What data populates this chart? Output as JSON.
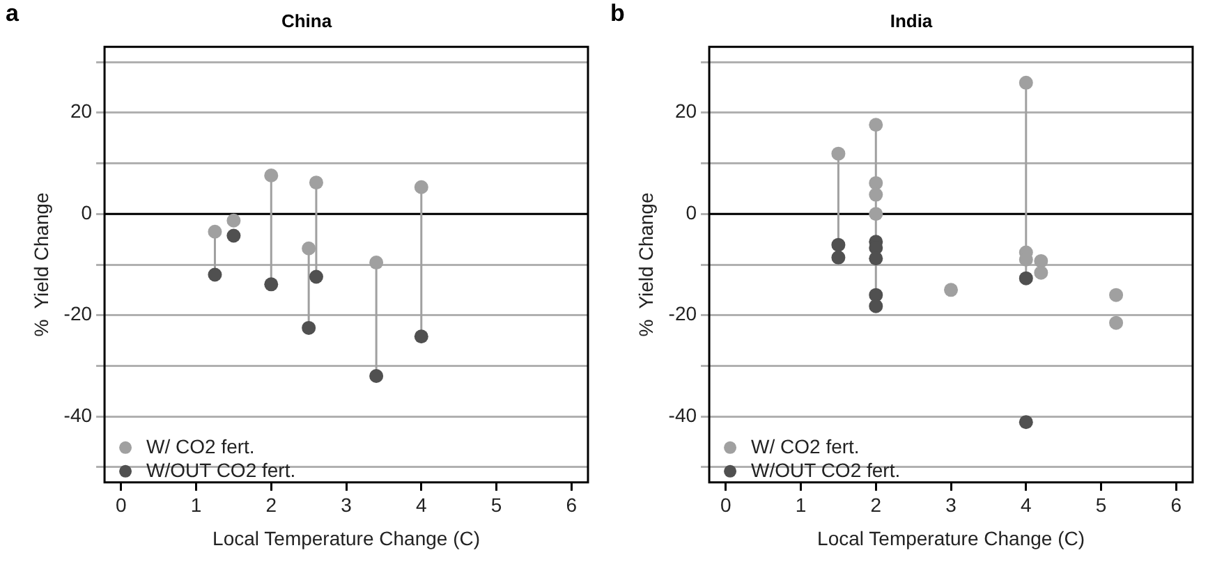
{
  "chart_data": [
    {
      "type": "scatter",
      "title": "China",
      "annotations": [
        "a"
      ],
      "xlabel": "Local Temperature Change (C)",
      "ylabel": "%  Yield Change",
      "xlim": [
        -0.22,
        6.22
      ],
      "xticks": [
        0,
        1,
        2,
        3,
        4,
        5,
        6
      ],
      "ylim": [
        -53,
        33
      ],
      "yticks": [
        {
          "value": -50,
          "label": null
        },
        -40,
        {
          "value": -30,
          "label": null
        },
        -20,
        {
          "value": -10,
          "label": null
        },
        0,
        {
          "value": 10,
          "label": null
        },
        20,
        {
          "value": 30,
          "label": null
        }
      ],
      "grid": "y",
      "legend": "bottom left",
      "marker": "circle",
      "ref_lines": [
        {
          "axis": "y",
          "value": 0,
          "color": "#000000"
        }
      ],
      "series": [
        {
          "name": "W/ CO2 fert.",
          "color": "#a0a0a0",
          "x": [
            1.25,
            1.5,
            2.0,
            2.5,
            2.6,
            3.4,
            4.0
          ],
          "values": [
            -3.5,
            -1.3,
            7.6,
            -6.8,
            6.2,
            -9.6,
            5.3
          ]
        },
        {
          "name": "W/OUT CO2 fert.",
          "color": "#505050",
          "x": [
            1.25,
            1.5,
            2.0,
            2.5,
            2.6,
            3.4,
            4.0
          ],
          "values": [
            -12,
            -4.3,
            -13.9,
            -22.5,
            -12.4,
            -32,
            -24.2
          ]
        },
        {
          "type": "line",
          "marker": "none",
          "color": "#a0a0a0",
          "x": [
            1.25,
            1.25
          ],
          "values": [
            -3.5,
            -12
          ]
        },
        {
          "type": "line",
          "marker": "none",
          "color": "#a0a0a0",
          "x": [
            2.0,
            2.0
          ],
          "values": [
            7.6,
            -13.9
          ]
        },
        {
          "type": "line",
          "marker": "none",
          "color": "#a0a0a0",
          "x": [
            2.5,
            2.5
          ],
          "values": [
            -6.8,
            -22.5
          ]
        },
        {
          "type": "line",
          "marker": "none",
          "color": "#a0a0a0",
          "x": [
            2.6,
            2.6
          ],
          "values": [
            6.2,
            -12.4
          ]
        },
        {
          "type": "line",
          "marker": "none",
          "color": "#a0a0a0",
          "x": [
            3.4,
            3.4
          ],
          "values": [
            -9.6,
            -32
          ]
        },
        {
          "type": "line",
          "marker": "none",
          "color": "#a0a0a0",
          "x": [
            4.0,
            4.0
          ],
          "values": [
            5.3,
            -24.2
          ]
        }
      ]
    },
    {
      "type": "scatter",
      "title": "India",
      "annotations": [
        "b"
      ],
      "xlabel": "Local Temperature Change (C)",
      "ylabel": "%  Yield Change",
      "xlim": [
        -0.22,
        6.22
      ],
      "xticks": [
        0,
        1,
        2,
        3,
        4,
        5,
        6
      ],
      "ylim": [
        -53,
        33
      ],
      "yticks": [
        {
          "value": -50,
          "label": null
        },
        -40,
        {
          "value": -30,
          "label": null
        },
        -20,
        {
          "value": -10,
          "label": null
        },
        0,
        {
          "value": 10,
          "label": null
        },
        20,
        {
          "value": 30,
          "label": null
        }
      ],
      "grid": "y",
      "legend": "bottom left",
      "marker": "circle",
      "ref_lines": [
        {
          "axis": "y",
          "value": 0,
          "color": "#000000"
        }
      ],
      "series": [
        {
          "name": "W/ CO2 fert.",
          "color": "#a0a0a0",
          "x": [
            1.5,
            2.0,
            2.0,
            2.0,
            2.0,
            3.0,
            4.0,
            4.0,
            4.0,
            4.2,
            4.2,
            5.2,
            5.2
          ],
          "values": [
            11.9,
            17.6,
            6.1,
            3.8,
            0,
            -15,
            25.9,
            -7.6,
            -9,
            -9.3,
            -11.6,
            -16,
            -21.5
          ]
        },
        {
          "name": "W/OUT CO2 fert.",
          "color": "#505050",
          "x": [
            1.5,
            1.5,
            2.0,
            2.0,
            2.0,
            2.0,
            2.0,
            4.0,
            4.0
          ],
          "values": [
            -6.1,
            -8.6,
            -5.5,
            -6.7,
            -8.8,
            -16,
            -18.2,
            -12.7,
            -41.1
          ]
        },
        {
          "type": "line",
          "marker": "none",
          "color": "#a0a0a0",
          "x": [
            1.5,
            1.5
          ],
          "values": [
            11.9,
            -8.6
          ]
        },
        {
          "type": "line",
          "marker": "none",
          "color": "#a0a0a0",
          "x": [
            2.0,
            2.0
          ],
          "values": [
            17.6,
            -18.2
          ]
        },
        {
          "type": "line",
          "marker": "none",
          "color": "#a0a0a0",
          "x": [
            4.0,
            4.0
          ],
          "values": [
            25.9,
            -12.7
          ]
        }
      ]
    }
  ]
}
